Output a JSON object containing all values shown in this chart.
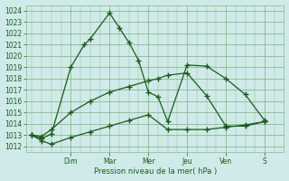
{
  "title": "Pression niveau de la mer( hPa )",
  "bg_color": "#d0eaea",
  "grid_color": "#8ab88a",
  "line_color": "#1a5c1a",
  "ylim": [
    1011.5,
    1024.5
  ],
  "yticks": [
    1012,
    1013,
    1014,
    1015,
    1016,
    1017,
    1018,
    1019,
    1020,
    1021,
    1022,
    1023,
    1024
  ],
  "day_labels": [
    "Dim",
    "Mar",
    "Mer",
    "Jeu",
    "Ven",
    "S"
  ],
  "day_positions": [
    2,
    4,
    6,
    8,
    10,
    12
  ],
  "xlim": [
    -0.3,
    13.0
  ],
  "line1_x": [
    0,
    0.5,
    1,
    2,
    2.7,
    3,
    4,
    4.5,
    5,
    5.5,
    6,
    6.5,
    7,
    8,
    9,
    10,
    11,
    12
  ],
  "line1_y": [
    1013.0,
    1012.7,
    1013.1,
    1019.0,
    1021.0,
    1021.5,
    1023.8,
    1022.5,
    1021.2,
    1019.6,
    1016.8,
    1016.4,
    1014.2,
    1019.2,
    1019.1,
    1018.0,
    1016.6,
    1014.3
  ],
  "line2_x": [
    0,
    0.5,
    1,
    2,
    3,
    4,
    5,
    6,
    6.5,
    7,
    8,
    9,
    10,
    11,
    12
  ],
  "line2_y": [
    1013.0,
    1012.9,
    1013.5,
    1015.0,
    1016.0,
    1016.8,
    1017.3,
    1017.8,
    1018.0,
    1018.3,
    1018.5,
    1016.5,
    1013.8,
    1013.8,
    1014.2
  ],
  "line3_x": [
    0,
    0.5,
    1,
    2,
    3,
    4,
    5,
    6,
    7,
    8,
    9,
    10,
    11,
    12
  ],
  "line3_y": [
    1013.0,
    1012.5,
    1012.2,
    1012.8,
    1013.3,
    1013.8,
    1014.3,
    1014.8,
    1013.5,
    1013.5,
    1013.5,
    1013.7,
    1013.9,
    1014.2
  ]
}
